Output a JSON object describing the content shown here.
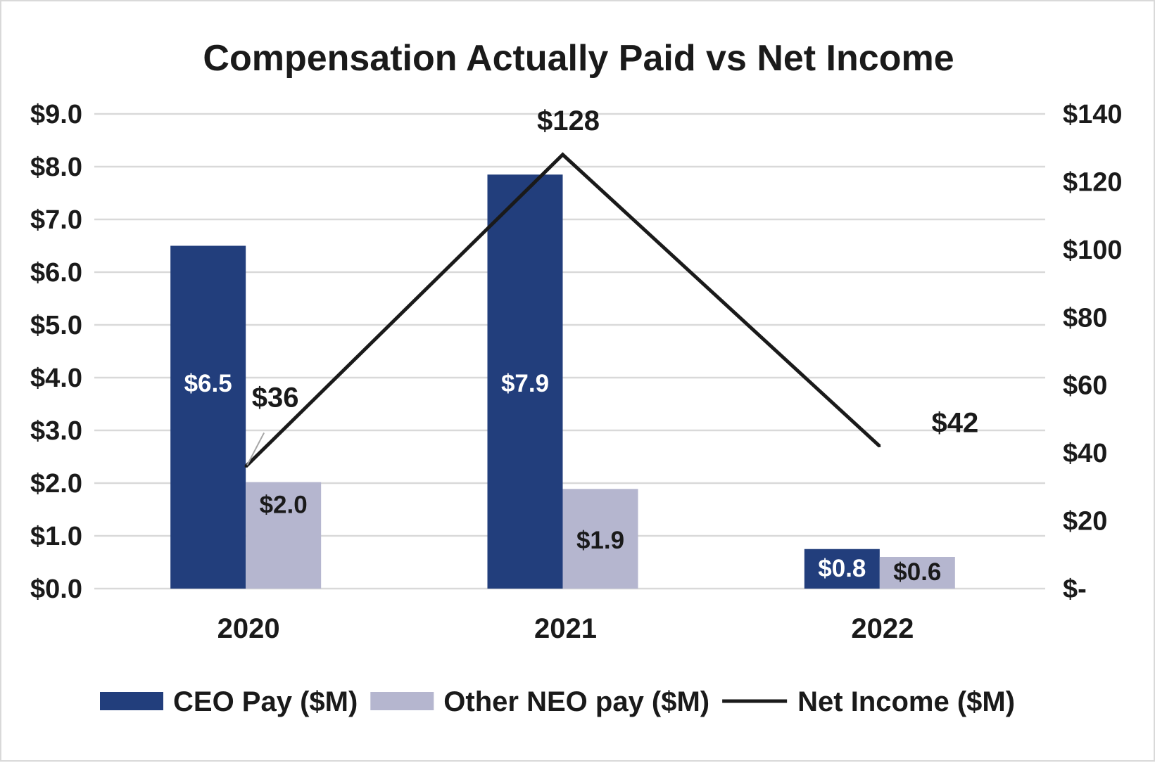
{
  "chart_data": {
    "type": "bar",
    "title": "Compensation Actually Paid vs Net Income",
    "categories": [
      "2020",
      "2021",
      "2022"
    ],
    "series": [
      {
        "name": "CEO Pay ($M)",
        "kind": "bar",
        "axis": "left",
        "color": "#223e7c",
        "label_color": "#ffffff",
        "values": [
          6.5,
          7.85,
          0.75
        ],
        "labels": [
          "$6.5",
          "$7.9",
          "$0.8"
        ]
      },
      {
        "name": "Other NEO pay ($M)",
        "kind": "bar",
        "axis": "left",
        "color": "#b5b6cf",
        "label_color": "#1a1a1a",
        "values": [
          2.02,
          1.89,
          0.6
        ],
        "labels": [
          "$2.0",
          "$1.9",
          "$0.6"
        ]
      },
      {
        "name": "Net Income ($M)",
        "kind": "line",
        "axis": "right",
        "color": "#1a1a1a",
        "values": [
          36,
          128,
          42
        ],
        "labels": [
          "$36",
          "$128",
          "$42"
        ]
      }
    ],
    "left_axis": {
      "ylim": [
        0,
        9
      ],
      "ticks": [
        0,
        1,
        2,
        3,
        4,
        5,
        6,
        7,
        8,
        9
      ],
      "tick_labels": [
        "$0.0",
        "$1.0",
        "$2.0",
        "$3.0",
        "$4.0",
        "$5.0",
        "$6.0",
        "$7.0",
        "$8.0",
        "$9.0"
      ]
    },
    "right_axis": {
      "ylim": [
        0,
        140
      ],
      "ticks": [
        0,
        20,
        40,
        60,
        80,
        100,
        120,
        140
      ],
      "tick_labels": [
        "$-",
        "$20",
        "$40",
        "$60",
        "$80",
        "$100",
        "$120",
        "$140"
      ]
    },
    "grid": true,
    "legend_position": "bottom",
    "grid_color": "#d9d9d9"
  }
}
